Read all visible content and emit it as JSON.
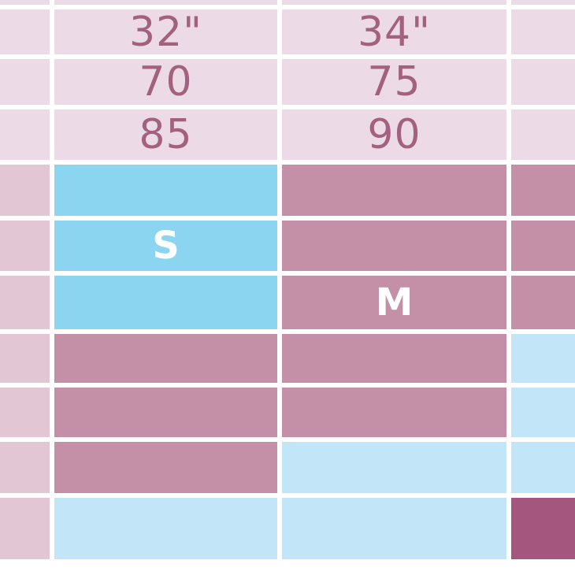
{
  "colors": {
    "background": "#ffffff",
    "grid_line": "#ffffff",
    "header_pink": "#ecdbe6",
    "row_label_pink": "#e2c6d4",
    "highlight_blue": "#8bd5f1",
    "pale_blue": "#c2e5f8",
    "mauve": "#c390a8",
    "plum": "#a5567e",
    "header_text": "#a2617f",
    "size_letter_text": "#ffffff"
  },
  "chart_data": {
    "type": "table",
    "title": "",
    "header_rows": [
      [
        "32\"",
        "34\""
      ],
      [
        "70",
        "75"
      ],
      [
        "85",
        "90"
      ]
    ],
    "size_labels": [
      "S",
      "M"
    ],
    "highlights": {
      "S": "blue highlight under the 32\" / 70 / 85 column",
      "M": "mauve highlight under the 34\" / 75 / 90 column"
    }
  },
  "table": {
    "rows": [
      {
        "cells": [
          {
            "c": "header_pink"
          },
          {
            "c": "header_pink"
          },
          {
            "c": "header_pink"
          },
          {
            "c": "header_pink"
          }
        ]
      },
      {
        "cells": [
          {
            "c": "header_pink"
          },
          {
            "c": "header_pink",
            "t": "num",
            "label": "32\""
          },
          {
            "c": "header_pink",
            "t": "num",
            "label": "34\""
          },
          {
            "c": "header_pink"
          }
        ]
      },
      {
        "cells": [
          {
            "c": "header_pink"
          },
          {
            "c": "header_pink",
            "t": "num",
            "label": "70"
          },
          {
            "c": "header_pink",
            "t": "num",
            "label": "75"
          },
          {
            "c": "header_pink"
          }
        ]
      },
      {
        "cells": [
          {
            "c": "header_pink"
          },
          {
            "c": "header_pink",
            "t": "num",
            "label": "85"
          },
          {
            "c": "header_pink",
            "t": "num",
            "label": "90"
          },
          {
            "c": "header_pink"
          }
        ]
      },
      {
        "cells": [
          {
            "c": "row_label_pink"
          },
          {
            "c": "highlight_blue"
          },
          {
            "c": "mauve"
          },
          {
            "c": "mauve"
          }
        ]
      },
      {
        "cells": [
          {
            "c": "row_label_pink"
          },
          {
            "c": "highlight_blue",
            "t": "size",
            "label": "S"
          },
          {
            "c": "mauve"
          },
          {
            "c": "mauve"
          }
        ]
      },
      {
        "cells": [
          {
            "c": "row_label_pink"
          },
          {
            "c": "highlight_blue"
          },
          {
            "c": "mauve",
            "t": "size",
            "label": "M"
          },
          {
            "c": "mauve"
          }
        ]
      },
      {
        "cells": [
          {
            "c": "row_label_pink"
          },
          {
            "c": "mauve"
          },
          {
            "c": "mauve"
          },
          {
            "c": "pale_blue"
          }
        ]
      },
      {
        "cells": [
          {
            "c": "row_label_pink"
          },
          {
            "c": "mauve"
          },
          {
            "c": "mauve"
          },
          {
            "c": "pale_blue"
          }
        ]
      },
      {
        "cells": [
          {
            "c": "row_label_pink"
          },
          {
            "c": "mauve"
          },
          {
            "c": "pale_blue"
          },
          {
            "c": "pale_blue"
          }
        ]
      },
      {
        "cells": [
          {
            "c": "row_label_pink"
          },
          {
            "c": "pale_blue"
          },
          {
            "c": "pale_blue"
          },
          {
            "c": "plum"
          }
        ]
      }
    ]
  }
}
